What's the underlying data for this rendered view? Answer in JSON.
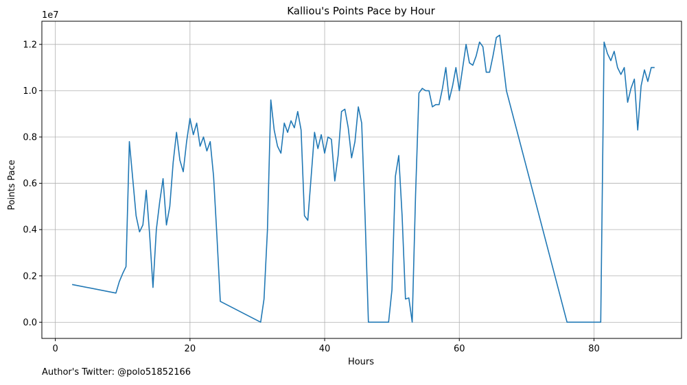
{
  "chart_data": {
    "type": "line",
    "title": "Kalliou's Points Pace by Hour",
    "xlabel": "Hours",
    "ylabel": "Points Pace",
    "y_offset_label": "1e7",
    "xlim": [
      -2,
      93
    ],
    "ylim": [
      -700000,
      13000000
    ],
    "grid": true,
    "x_ticks": [
      0,
      20,
      40,
      60,
      80
    ],
    "x_tick_labels": [
      "0",
      "20",
      "40",
      "60",
      "80"
    ],
    "y_ticks": [
      0,
      2000000,
      4000000,
      6000000,
      8000000,
      10000000,
      12000000
    ],
    "y_tick_labels": [
      "0.0",
      "0.2",
      "0.4",
      "0.6",
      "0.8",
      "1.0",
      "1.2"
    ],
    "color": "#1f77b4",
    "series": [
      {
        "x": [
          2.5,
          9.0,
          9.5,
          10.0,
          10.5,
          11.0,
          11.5,
          12.0,
          12.5,
          13.0,
          13.5,
          14.0,
          14.5,
          15.0,
          15.5,
          16.0,
          16.5,
          17.0,
          17.5,
          18.0,
          18.5,
          19.0,
          19.5,
          20.0,
          20.5,
          21.0,
          21.5,
          22.0,
          22.5,
          23.0,
          23.5,
          24.0,
          24.5,
          30.5,
          31.0,
          31.5,
          32.0,
          32.5,
          33.0,
          33.5,
          34.0,
          34.5,
          35.0,
          35.5,
          36.0,
          36.5,
          37.0,
          37.5,
          38.0,
          38.5,
          39.0,
          39.5,
          40.0,
          40.5,
          41.0,
          41.5,
          42.0,
          42.5,
          43.0,
          43.5,
          44.0,
          44.5,
          45.0,
          45.5,
          46.0,
          46.5,
          49.5,
          50.0,
          50.5,
          51.0,
          51.5,
          52.0,
          52.5,
          53.0,
          53.5,
          54.0,
          54.5,
          55.0,
          55.5,
          56.0,
          56.5,
          57.0,
          57.5,
          58.0,
          58.5,
          59.0,
          59.5,
          60.0,
          60.5,
          61.0,
          61.5,
          62.0,
          62.5,
          63.0,
          63.5,
          64.0,
          64.5,
          65.0,
          65.5,
          66.0,
          66.5,
          67.0,
          76.0,
          80.5,
          81.0,
          81.5,
          82.0,
          82.5,
          83.0,
          83.5,
          84.0,
          84.5,
          85.0,
          85.5,
          86.0,
          86.5,
          87.0,
          87.5,
          88.0,
          88.5,
          89.0
        ],
        "y": [
          1630000,
          1260000,
          1750000,
          2100000,
          2400000,
          7800000,
          6200000,
          4600000,
          3900000,
          4200000,
          5700000,
          3800000,
          1500000,
          4000000,
          5200000,
          6200000,
          4200000,
          5000000,
          6900000,
          8200000,
          7000000,
          6500000,
          7800000,
          8800000,
          8100000,
          8600000,
          7600000,
          8000000,
          7400000,
          7800000,
          6300000,
          3700000,
          900000,
          0,
          1000000,
          4000000,
          9600000,
          8300000,
          7600000,
          7300000,
          8600000,
          8200000,
          8700000,
          8400000,
          9100000,
          8300000,
          4600000,
          4400000,
          6300000,
          8200000,
          7500000,
          8100000,
          7300000,
          8000000,
          7900000,
          6100000,
          7200000,
          9100000,
          9200000,
          8400000,
          7100000,
          7800000,
          9300000,
          8600000,
          4600000,
          0,
          0,
          1400000,
          6300000,
          7200000,
          4600000,
          1000000,
          1050000,
          0,
          5500000,
          9900000,
          10100000,
          10000000,
          10000000,
          9300000,
          9400000,
          9400000,
          10100000,
          11000000,
          9600000,
          10200000,
          11000000,
          10000000,
          11000000,
          12000000,
          11200000,
          11100000,
          11500000,
          12100000,
          11900000,
          10800000,
          10800000,
          11500000,
          12300000,
          12400000,
          11200000,
          10000000,
          0,
          0,
          0,
          12100000,
          11600000,
          11300000,
          11700000,
          11000000,
          10700000,
          11000000,
          9500000,
          10100000,
          10500000,
          8300000,
          10200000,
          10900000,
          10400000,
          11000000,
          11000000
        ]
      }
    ]
  },
  "footer": {
    "text": "Author's Twitter: @polo51852166"
  }
}
